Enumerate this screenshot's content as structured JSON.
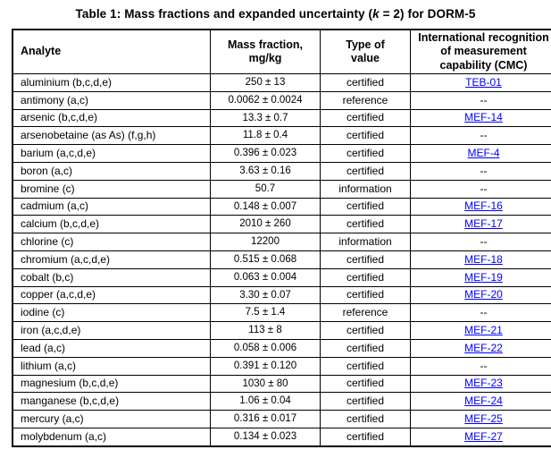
{
  "title": {
    "part1": "Table 1: Mass fractions and expanded uncertainty (",
    "k": "k",
    "part2": " = 2) for DORM-5"
  },
  "table": {
    "headers": [
      "Analyte",
      "Mass fraction,\nmg/kg",
      "Type of\nvalue",
      "International recognition\nof measurement\ncapability (CMC)"
    ],
    "link_color": "#0000ff",
    "rows": [
      {
        "analyte": "aluminium (b,c,d,e)",
        "mass_fraction": "250 ± 13",
        "type_of_value": "certified",
        "cmc": "TEB-01",
        "cmc_is_link": true
      },
      {
        "analyte": "antimony (a,c)",
        "mass_fraction": "0.0062 ± 0.0024",
        "type_of_value": "reference",
        "cmc": "--",
        "cmc_is_link": false
      },
      {
        "analyte": "arsenic (b,c,d,e)",
        "mass_fraction": "13.3 ± 0.7",
        "type_of_value": "certified",
        "cmc": "MEF-14",
        "cmc_is_link": true
      },
      {
        "analyte": "arsenobetaine (as As) (f,g,h)",
        "mass_fraction": "11.8 ± 0.4",
        "type_of_value": "certified",
        "cmc": "--",
        "cmc_is_link": false
      },
      {
        "analyte": "barium (a,c,d,e)",
        "mass_fraction": "0.396 ± 0.023",
        "type_of_value": "certified",
        "cmc": "MEF-4",
        "cmc_is_link": true
      },
      {
        "analyte": "boron (a,c)",
        "mass_fraction": "3.63 ± 0.16",
        "type_of_value": "certified",
        "cmc": "--",
        "cmc_is_link": false
      },
      {
        "analyte": "bromine (c)",
        "mass_fraction": "50.7",
        "type_of_value": "information",
        "cmc": "--",
        "cmc_is_link": false
      },
      {
        "analyte": "cadmium (a,c)",
        "mass_fraction": "0.148 ± 0.007",
        "type_of_value": "certified",
        "cmc": "MEF-16",
        "cmc_is_link": true
      },
      {
        "analyte": "calcium (b,c,d,e)",
        "mass_fraction": "2010 ± 260",
        "type_of_value": "certified",
        "cmc": "MEF-17",
        "cmc_is_link": true
      },
      {
        "analyte": "chlorine (c)",
        "mass_fraction": "12200",
        "type_of_value": "information",
        "cmc": "--",
        "cmc_is_link": false
      },
      {
        "analyte": "chromium (a,c,d,e)",
        "mass_fraction": "0.515 ± 0.068",
        "type_of_value": "certified",
        "cmc": "MEF-18",
        "cmc_is_link": true
      },
      {
        "analyte": "cobalt (b,c)",
        "mass_fraction": "0.063 ± 0.004",
        "type_of_value": "certified",
        "cmc": "MEF-19",
        "cmc_is_link": true
      },
      {
        "analyte": "copper (a,c,d,e)",
        "mass_fraction": "3.30 ± 0.07",
        "type_of_value": "certified",
        "cmc": "MEF-20",
        "cmc_is_link": true
      },
      {
        "analyte": "iodine (c)",
        "mass_fraction": "7.5 ± 1.4",
        "type_of_value": "reference",
        "cmc": "--",
        "cmc_is_link": false
      },
      {
        "analyte": "iron (a,c,d,e)",
        "mass_fraction": "113 ± 8",
        "type_of_value": "certified",
        "cmc": "MEF-21",
        "cmc_is_link": true
      },
      {
        "analyte": "lead (a,c)",
        "mass_fraction": "0.058 ± 0.006",
        "type_of_value": "certified",
        "cmc": "MEF-22",
        "cmc_is_link": true
      },
      {
        "analyte": "lithium (a,c)",
        "mass_fraction": "0.391 ± 0.120",
        "type_of_value": "certified",
        "cmc": "--",
        "cmc_is_link": false
      },
      {
        "analyte": "magnesium (b,c,d,e)",
        "mass_fraction": "1030 ± 80",
        "type_of_value": "certified",
        "cmc": "MEF-23",
        "cmc_is_link": true
      },
      {
        "analyte": "manganese (b,c,d,e)",
        "mass_fraction": "1.06 ± 0.04",
        "type_of_value": "certified",
        "cmc": "MEF-24",
        "cmc_is_link": true
      },
      {
        "analyte": "mercury (a,c)",
        "mass_fraction": "0.316 ± 0.017",
        "type_of_value": "certified",
        "cmc": "MEF-25",
        "cmc_is_link": true
      },
      {
        "analyte": "molybdenum (a,c)",
        "mass_fraction": "0.134 ± 0.023",
        "type_of_value": "certified",
        "cmc": "MEF-27",
        "cmc_is_link": true
      }
    ]
  }
}
